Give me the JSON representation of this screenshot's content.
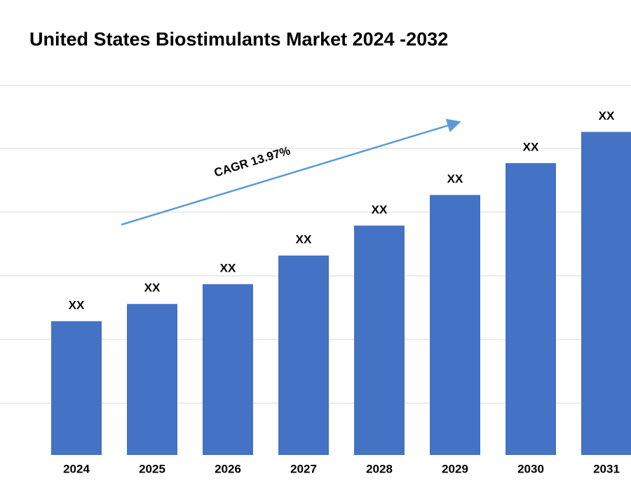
{
  "chart_data": {
    "type": "bar",
    "title": "United States Biostimulants Market 2024 -2032",
    "annotation": "CAGR 13.97%",
    "categories": [
      "2024",
      "2025",
      "2026",
      "2027",
      "2028",
      "2029",
      "2030",
      "2031"
    ],
    "values": [
      2.1,
      2.37,
      2.68,
      3.13,
      3.6,
      4.08,
      4.58,
      5.07
    ],
    "value_labels": [
      "XX",
      "XX",
      "XX",
      "XX",
      "XX",
      "XX",
      "XX",
      "XX"
    ],
    "color": "#4472c4",
    "ylim": [
      0,
      5.8
    ]
  }
}
